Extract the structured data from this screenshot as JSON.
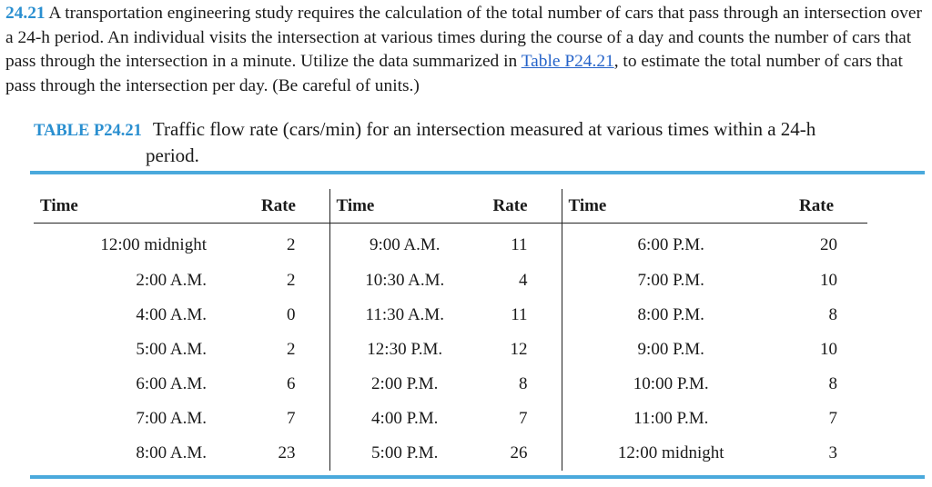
{
  "problem": {
    "number": "24.21",
    "text_before": " A transportation engineering study requires the calculation of the total number of cars that pass through an intersection over a 24-h period. An individual visits the intersection at various times during the course of a day and counts the number of cars that pass through the intersection in a minute. Utilize the data summarized in ",
    "reference_link": "Table P24.21",
    "text_after": ", to estimate the total number of cars that pass through the intersection per day. (Be careful of units.)"
  },
  "table": {
    "label": "TABLE P24.21",
    "caption_line1": "Traffic flow rate (cars/min) for an intersection measured at various times within a 24-h",
    "caption_line2": "period.",
    "headers": [
      "Time",
      "Rate",
      "Time",
      "Rate",
      "Time",
      "Rate"
    ],
    "rows": [
      [
        "12:00 midnight",
        "2",
        "9:00 A.M.",
        "11",
        "6:00 P.M.",
        "20"
      ],
      [
        "2:00 A.M.",
        "2",
        "10:30 A.M.",
        "4",
        "7:00 P.M.",
        "10"
      ],
      [
        "4:00 A.M.",
        "0",
        "11:30 A.M.",
        "11",
        "8:00 P.M.",
        "8"
      ],
      [
        "5:00 A.M.",
        "2",
        "12:30 P.M.",
        "12",
        "9:00 P.M.",
        "10"
      ],
      [
        "6:00 A.M.",
        "6",
        "2:00 P.M.",
        "8",
        "10:00 P.M.",
        "8"
      ],
      [
        "7:00 A.M.",
        "7",
        "4:00 P.M.",
        "7",
        "11:00 P.M.",
        "7"
      ],
      [
        "8:00 A.M.",
        "23",
        "5:00 P.M.",
        "26",
        "12:00 midnight",
        "3"
      ]
    ]
  },
  "colors": {
    "accent_blue": "#2a8fd0",
    "link_blue": "#2563c9",
    "rule_blue": "#4aa9dc"
  }
}
